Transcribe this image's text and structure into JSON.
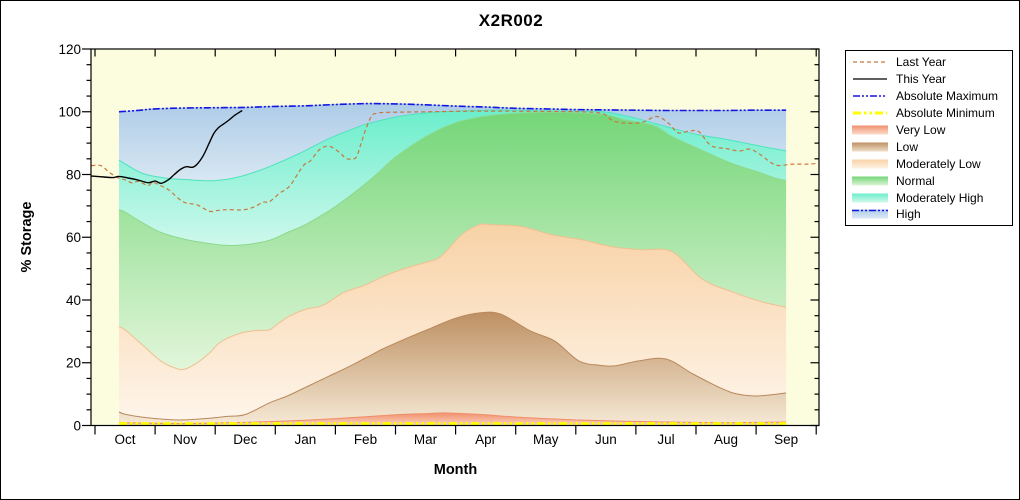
{
  "chart_data": {
    "type": "area",
    "title": "X2R002",
    "xlabel": "Month",
    "ylabel": "% Storage",
    "x_categories": [
      "Oct",
      "Nov",
      "Dec",
      "Jan",
      "Feb",
      "Mar",
      "Apr",
      "May",
      "Jun",
      "Jul",
      "Aug",
      "Sep"
    ],
    "ylim": [
      0,
      120
    ],
    "y_major_ticks": [
      0,
      20,
      40,
      60,
      80,
      100,
      120
    ],
    "y_minor_step": 5,
    "x_unit": "month-slot units: 0 = first tick (start of Oct), 12 = last tick (end of Sep), labels centered at n+0.5",
    "plot_bg_color": "#FCFCDE",
    "boundaries": {
      "absolute_maximum": [
        [
          0.4,
          100.0
        ],
        [
          0.7,
          100.4
        ],
        [
          1.0,
          100.9
        ],
        [
          1.5,
          101.2
        ],
        [
          2.0,
          101.3
        ],
        [
          2.5,
          101.4
        ],
        [
          3.0,
          101.7
        ],
        [
          3.5,
          101.9
        ],
        [
          4.0,
          102.3
        ],
        [
          4.5,
          102.6
        ],
        [
          5.0,
          102.5
        ],
        [
          5.5,
          102.2
        ],
        [
          6.0,
          101.8
        ],
        [
          6.5,
          101.5
        ],
        [
          7.0,
          101.1
        ],
        [
          7.5,
          100.9
        ],
        [
          8.0,
          100.7
        ],
        [
          8.5,
          100.6
        ],
        [
          9.0,
          100.5
        ],
        [
          9.5,
          100.4
        ],
        [
          10.0,
          100.4
        ],
        [
          10.5,
          100.4
        ],
        [
          11.0,
          100.5
        ],
        [
          11.5,
          100.5
        ]
      ],
      "moderately_high_top": [
        [
          0.4,
          84.6
        ],
        [
          0.5,
          83.4
        ],
        [
          0.8,
          80.3
        ],
        [
          1.2,
          78.8
        ],
        [
          1.5,
          78.4
        ],
        [
          1.9,
          78.0
        ],
        [
          2.2,
          78.5
        ],
        [
          2.5,
          79.8
        ],
        [
          2.9,
          82.5
        ],
        [
          3.4,
          86.7
        ],
        [
          3.9,
          91.5
        ],
        [
          4.4,
          95.3
        ],
        [
          4.5,
          96.0
        ],
        [
          5.0,
          98.3
        ],
        [
          5.5,
          99.6
        ],
        [
          6.0,
          100.2
        ],
        [
          6.5,
          100.5
        ],
        [
          7.0,
          100.5
        ],
        [
          7.5,
          100.3
        ],
        [
          8.0,
          100.1
        ],
        [
          8.5,
          99.9
        ],
        [
          9.0,
          97.9
        ],
        [
          9.5,
          95.3
        ],
        [
          10.0,
          92.8
        ],
        [
          10.5,
          91.2
        ],
        [
          11.0,
          89.3
        ],
        [
          11.5,
          87.5
        ]
      ],
      "normal_top": [
        [
          0.4,
          68.8
        ],
        [
          0.5,
          68.0
        ],
        [
          0.8,
          64.5
        ],
        [
          1.1,
          61.5
        ],
        [
          1.5,
          59.3
        ],
        [
          1.9,
          58.0
        ],
        [
          2.2,
          57.4
        ],
        [
          2.5,
          57.6
        ],
        [
          2.9,
          59.0
        ],
        [
          3.2,
          61.5
        ],
        [
          3.5,
          64.0
        ],
        [
          3.9,
          68.5
        ],
        [
          4.3,
          74.0
        ],
        [
          4.65,
          79.5
        ],
        [
          5.0,
          85.5
        ],
        [
          5.5,
          92.0
        ],
        [
          6.0,
          96.5
        ],
        [
          6.5,
          98.6
        ],
        [
          7.0,
          99.5
        ],
        [
          7.5,
          99.8
        ],
        [
          8.0,
          99.7
        ],
        [
          8.5,
          99.0
        ],
        [
          8.8,
          97.5
        ],
        [
          9.3,
          95.6
        ],
        [
          9.6,
          92.1
        ],
        [
          10.1,
          87.7
        ],
        [
          10.6,
          83.5
        ],
        [
          11.0,
          81.0
        ],
        [
          11.35,
          78.7
        ],
        [
          11.5,
          78.1
        ]
      ],
      "moderately_low_top": [
        [
          0.4,
          31.5
        ],
        [
          0.5,
          30.5
        ],
        [
          0.8,
          25.5
        ],
        [
          1.1,
          20.5
        ],
        [
          1.35,
          18.2
        ],
        [
          1.5,
          18.0
        ],
        [
          1.7,
          20.0
        ],
        [
          1.9,
          23.0
        ],
        [
          2.05,
          26.0
        ],
        [
          2.2,
          27.8
        ],
        [
          2.4,
          29.3
        ],
        [
          2.5,
          29.8
        ],
        [
          2.7,
          30.3
        ],
        [
          2.9,
          30.5
        ],
        [
          3.05,
          32.5
        ],
        [
          3.25,
          35.0
        ],
        [
          3.5,
          37.0
        ],
        [
          3.75,
          38.0
        ],
        [
          3.9,
          39.5
        ],
        [
          4.15,
          42.5
        ],
        [
          4.5,
          44.8
        ],
        [
          4.8,
          47.5
        ],
        [
          5.15,
          50.0
        ],
        [
          5.5,
          52.0
        ],
        [
          5.75,
          53.8
        ],
        [
          6.1,
          60.8
        ],
        [
          6.4,
          64.0
        ],
        [
          6.6,
          64.0
        ],
        [
          7.1,
          63.4
        ],
        [
          7.6,
          60.8
        ],
        [
          8.1,
          59.2
        ],
        [
          8.6,
          57.0
        ],
        [
          9.1,
          56.0
        ],
        [
          9.6,
          55.4
        ],
        [
          10.1,
          46.7
        ],
        [
          10.6,
          42.6
        ],
        [
          11.1,
          39.4
        ],
        [
          11.5,
          37.7
        ]
      ],
      "low_top": [
        [
          0.4,
          4.3
        ],
        [
          0.5,
          3.6
        ],
        [
          0.8,
          2.6
        ],
        [
          1.2,
          1.9
        ],
        [
          1.5,
          1.8
        ],
        [
          1.9,
          2.3
        ],
        [
          2.2,
          2.9
        ],
        [
          2.5,
          3.5
        ],
        [
          2.9,
          7.2
        ],
        [
          3.2,
          9.4
        ],
        [
          3.55,
          12.6
        ],
        [
          3.9,
          15.8
        ],
        [
          4.25,
          19.0
        ],
        [
          4.5,
          21.5
        ],
        [
          4.8,
          24.5
        ],
        [
          5.15,
          27.5
        ],
        [
          5.6,
          31.1
        ],
        [
          6.0,
          34.2
        ],
        [
          6.4,
          35.9
        ],
        [
          6.75,
          35.5
        ],
        [
          7.25,
          30.1
        ],
        [
          7.65,
          26.9
        ],
        [
          8.05,
          20.6
        ],
        [
          8.4,
          19.2
        ],
        [
          8.65,
          19.0
        ],
        [
          9.05,
          20.6
        ],
        [
          9.5,
          21.2
        ],
        [
          9.95,
          16.4
        ],
        [
          10.45,
          11.6
        ],
        [
          10.7,
          10.0
        ],
        [
          11.0,
          9.4
        ],
        [
          11.35,
          10.0
        ],
        [
          11.5,
          10.4
        ]
      ],
      "very_low_top": [
        [
          0.4,
          1.0
        ],
        [
          0.5,
          0.9
        ],
        [
          1.0,
          0.7
        ],
        [
          1.5,
          0.6
        ],
        [
          2.0,
          0.8
        ],
        [
          2.5,
          1.0
        ],
        [
          3.0,
          1.3
        ],
        [
          3.5,
          1.7
        ],
        [
          4.0,
          2.2
        ],
        [
          4.5,
          2.8
        ],
        [
          5.0,
          3.4
        ],
        [
          5.5,
          3.8
        ],
        [
          5.8,
          4.0
        ],
        [
          6.0,
          3.9
        ],
        [
          6.5,
          3.4
        ],
        [
          7.0,
          2.7
        ],
        [
          7.5,
          2.2
        ],
        [
          8.0,
          1.8
        ],
        [
          8.5,
          1.5
        ],
        [
          9.0,
          1.3
        ],
        [
          9.5,
          1.1
        ],
        [
          10.0,
          1.0
        ],
        [
          10.5,
          0.9
        ],
        [
          11.0,
          1.0
        ],
        [
          11.5,
          1.1
        ]
      ],
      "zero": [
        [
          0.4,
          0
        ],
        [
          11.5,
          0
        ]
      ],
      "absolute_minimum": [
        [
          0.4,
          0.6
        ],
        [
          11.5,
          0.6
        ]
      ],
      "last_year": [
        [
          -0.06,
          82.8
        ],
        [
          0.1,
          82.8
        ],
        [
          0.25,
          80.5
        ],
        [
          0.4,
          78.8
        ],
        [
          0.5,
          78.3
        ],
        [
          0.62,
          77.3
        ],
        [
          0.72,
          77.8
        ],
        [
          0.88,
          76.5
        ],
        [
          0.96,
          77.5
        ],
        [
          1.05,
          76.8
        ],
        [
          1.22,
          75.2
        ],
        [
          1.38,
          72.5
        ],
        [
          1.5,
          71.0
        ],
        [
          1.7,
          70.3
        ],
        [
          1.9,
          68.3
        ],
        [
          2.06,
          68.6
        ],
        [
          2.22,
          68.8
        ],
        [
          2.4,
          68.7
        ],
        [
          2.52,
          68.9
        ],
        [
          2.65,
          69.7
        ],
        [
          2.8,
          71.2
        ],
        [
          2.9,
          71.3
        ],
        [
          3.07,
          74.0
        ],
        [
          3.24,
          76.3
        ],
        [
          3.4,
          81.0
        ],
        [
          3.5,
          83.5
        ],
        [
          3.58,
          84.3
        ],
        [
          3.74,
          88.0
        ],
        [
          3.9,
          89.0
        ],
        [
          4.07,
          87.0
        ],
        [
          4.17,
          85.2
        ],
        [
          4.26,
          84.9
        ],
        [
          4.35,
          85.6
        ],
        [
          4.43,
          90.0
        ],
        [
          4.51,
          94.7
        ],
        [
          4.6,
          98.6
        ],
        [
          4.68,
          99.5
        ],
        [
          4.85,
          99.8
        ],
        [
          5.5,
          100.0
        ],
        [
          6.5,
          100.2
        ],
        [
          7.5,
          100.1
        ],
        [
          8.1,
          100.0
        ],
        [
          8.45,
          99.4
        ],
        [
          8.6,
          97.3
        ],
        [
          8.8,
          96.4
        ],
        [
          9.1,
          96.6
        ],
        [
          9.35,
          98.5
        ],
        [
          9.55,
          96.2
        ],
        [
          9.7,
          93.3
        ],
        [
          9.9,
          93.9
        ],
        [
          10.05,
          93.6
        ],
        [
          10.25,
          89.2
        ],
        [
          10.5,
          88.3
        ],
        [
          10.72,
          87.5
        ],
        [
          10.9,
          88.1
        ],
        [
          11.08,
          86.2
        ],
        [
          11.33,
          83.0
        ],
        [
          11.6,
          83.3
        ],
        [
          11.85,
          83.3
        ],
        [
          12.04,
          83.6
        ]
      ],
      "this_year": [
        [
          -0.06,
          79.5
        ],
        [
          0.15,
          79.2
        ],
        [
          0.3,
          79.0
        ],
        [
          0.4,
          79.4
        ],
        [
          0.55,
          78.9
        ],
        [
          0.7,
          78.3
        ],
        [
          0.88,
          77.4
        ],
        [
          1.0,
          77.9
        ],
        [
          1.1,
          77.2
        ],
        [
          1.22,
          78.3
        ],
        [
          1.32,
          80.0
        ],
        [
          1.42,
          81.6
        ],
        [
          1.52,
          82.5
        ],
        [
          1.62,
          82.3
        ],
        [
          1.7,
          83.3
        ],
        [
          1.8,
          86.0
        ],
        [
          1.9,
          90.0
        ],
        [
          1.98,
          93.2
        ],
        [
          2.06,
          95.0
        ],
        [
          2.14,
          96.1
        ],
        [
          2.22,
          97.2
        ],
        [
          2.32,
          98.8
        ],
        [
          2.4,
          99.8
        ],
        [
          2.45,
          100.4
        ]
      ]
    },
    "bands": [
      {
        "name": "High",
        "upper": "absolute_maximum",
        "lower": "moderately_high_top",
        "fill_top": "#AECCE8",
        "fill_bottom": "#D8E7F2",
        "edge": "#A6C6E2"
      },
      {
        "name": "Moderately High",
        "upper": "moderately_high_top",
        "lower": "normal_top",
        "fill_top": "#6BEECC",
        "fill_bottom": "#CFF8EC",
        "edge": "#4FE2BE"
      },
      {
        "name": "Normal",
        "upper": "normal_top",
        "lower": "moderately_low_top",
        "fill_top": "#74D678",
        "fill_bottom": "#E2F6DA",
        "edge": "#8CD98C"
      },
      {
        "name": "Moderately Low",
        "upper": "moderately_low_top",
        "lower": "low_top",
        "fill_top": "#F8D2A6",
        "fill_bottom": "#FEF5EA",
        "edge": "#EFC092"
      },
      {
        "name": "Low",
        "upper": "low_top",
        "lower": "very_low_top",
        "fill_top": "#BD9062",
        "fill_bottom": "#F5E8D4",
        "edge": "#B9885C"
      },
      {
        "name": "Very Low",
        "upper": "very_low_top",
        "lower": "zero",
        "fill_top": "#F1906E",
        "fill_bottom": "#FAD4C0",
        "edge": "#EE8F68"
      }
    ],
    "lines": [
      {
        "name": "Absolute Minimum",
        "points": "absolute_minimum",
        "color": "#FFFF00",
        "width": 3,
        "dash": "8,3,2.5,3,2.5,3"
      },
      {
        "name": "Absolute Maximum",
        "points": "absolute_maximum",
        "color": "#1414E6",
        "width": 1.6,
        "dash": "7,2,2,2,2,2"
      },
      {
        "name": "Last Year",
        "points": "last_year",
        "color": "#C8783C",
        "width": 1.2,
        "dash": "4,3"
      },
      {
        "name": "This Year",
        "points": "this_year",
        "color": "#000000",
        "width": 1.4,
        "dash": ""
      }
    ]
  },
  "legend": {
    "items": [
      {
        "label": "Last Year",
        "swatch": "line",
        "color": "#C8783C",
        "dash": "4,3",
        "width": 1.2
      },
      {
        "label": "This Year",
        "swatch": "line",
        "color": "#000000",
        "dash": "",
        "width": 1.3
      },
      {
        "label": "Absolute Maximum",
        "swatch": "line",
        "color": "#1414E6",
        "dash": "7,2,2,2,2,2",
        "width": 1.6
      },
      {
        "label": "Absolute Minimum",
        "swatch": "line",
        "color": "#FFFF00",
        "dash": "8,3,2.5,3,2.5,3",
        "width": 3
      },
      {
        "label": "Very Low",
        "swatch": "band",
        "color": "#F1906E",
        "color_light": "#FBDCCC"
      },
      {
        "label": "Low",
        "swatch": "band",
        "color": "#BD9062",
        "color_light": "#F0E0CA"
      },
      {
        "label": "Moderately Low",
        "swatch": "band",
        "color": "#F8D2A6",
        "color_light": "#FEF3E4"
      },
      {
        "label": "Normal",
        "swatch": "band",
        "color": "#74D678",
        "color_light": "#DFF5D8"
      },
      {
        "label": "Moderately High",
        "swatch": "band",
        "color": "#6BEECC",
        "color_light": "#D2F8EC"
      },
      {
        "label": "High",
        "swatch": "band",
        "color": "#AECCE8",
        "color_light": "#DCE9F4",
        "overlay": {
          "color": "#1414E6",
          "dash": "7,2,2,2,2,2",
          "width": 1.5
        }
      }
    ]
  }
}
